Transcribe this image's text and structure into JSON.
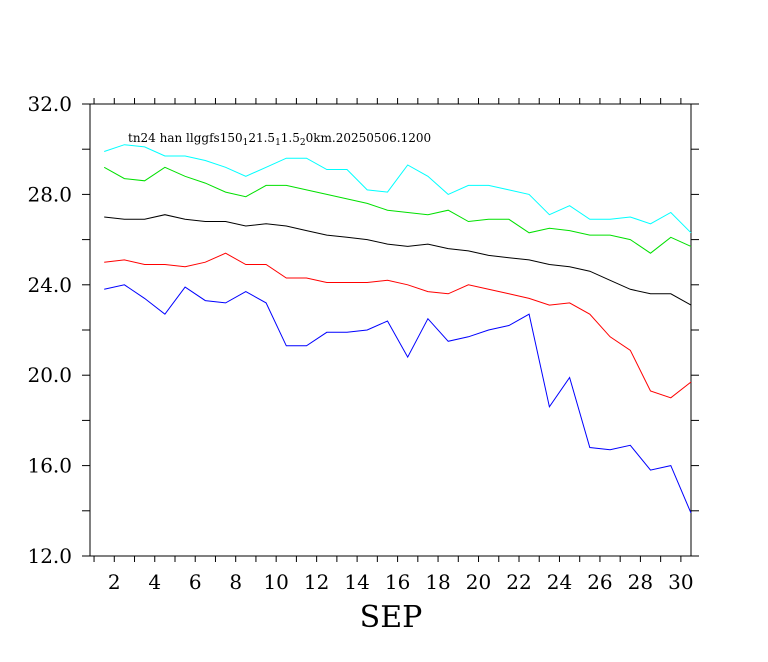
{
  "chart_data": {
    "type": "line",
    "title_parts": [
      {
        "text": "tn24 han llggfs150",
        "sub": false
      },
      {
        "text": "1",
        "sub": true
      },
      {
        "text": "21.5",
        "sub": false
      },
      {
        "text": "1",
        "sub": true
      },
      {
        "text": "1.5",
        "sub": false
      },
      {
        "text": "2",
        "sub": true
      },
      {
        "text": "0km.20250506.1200",
        "sub": false
      }
    ],
    "xlabel": "SEP",
    "ylabel": "",
    "xlim": [
      0.8,
      30.5
    ],
    "ylim": [
      12.0,
      32.0
    ],
    "x_ticks": [
      2,
      4,
      6,
      8,
      10,
      12,
      14,
      16,
      18,
      20,
      22,
      24,
      26,
      28,
      30
    ],
    "x_tick_labels": [
      "2",
      "4",
      "6",
      "8",
      "10",
      "12",
      "14",
      "16",
      "18",
      "20",
      "22",
      "24",
      "26",
      "28",
      "30"
    ],
    "y_ticks": [
      12,
      16,
      20,
      24,
      28,
      32
    ],
    "y_tick_labels": [
      "12.0",
      "16.0",
      "20.0",
      "24.0",
      "28.0",
      "32.0"
    ],
    "y_minor_ticks": [
      14,
      18,
      22,
      26,
      30
    ],
    "grid": false,
    "x": [
      1.5,
      2.5,
      3.5,
      4.5,
      5.5,
      6.5,
      7.5,
      8.5,
      9.5,
      10.5,
      11.5,
      12.5,
      13.5,
      14.5,
      15.5,
      16.5,
      17.5,
      18.5,
      19.5,
      20.5,
      21.5,
      22.5,
      23.5,
      24.5,
      25.5,
      26.5,
      27.5,
      28.5,
      29.5,
      30.5
    ],
    "series": [
      {
        "color": "#00ffff",
        "values": [
          29.9,
          30.2,
          30.1,
          29.7,
          29.7,
          29.5,
          29.2,
          28.8,
          29.2,
          29.6,
          29.6,
          29.1,
          29.1,
          28.2,
          28.1,
          29.3,
          28.8,
          28.0,
          28.4,
          28.4,
          28.2,
          28.0,
          27.1,
          27.5,
          26.9,
          26.9,
          27.0,
          26.7,
          27.2,
          26.3
        ]
      },
      {
        "color": "#00e000",
        "values": [
          29.2,
          28.7,
          28.6,
          29.2,
          28.8,
          28.5,
          28.1,
          27.9,
          28.4,
          28.4,
          28.2,
          28.0,
          27.8,
          27.6,
          27.3,
          27.2,
          27.1,
          27.3,
          26.8,
          26.9,
          26.9,
          26.3,
          26.5,
          26.4,
          26.2,
          26.2,
          26.0,
          25.4,
          26.1,
          25.7
        ]
      },
      {
        "color": "#000000",
        "values": [
          27.0,
          26.9,
          26.9,
          27.1,
          26.9,
          26.8,
          26.8,
          26.6,
          26.7,
          26.6,
          26.4,
          26.2,
          26.1,
          26.0,
          25.8,
          25.7,
          25.8,
          25.6,
          25.5,
          25.3,
          25.2,
          25.1,
          24.9,
          24.8,
          24.6,
          24.2,
          23.8,
          23.6,
          23.6,
          23.1
        ]
      },
      {
        "color": "#ff0000",
        "values": [
          25.0,
          25.1,
          24.9,
          24.9,
          24.8,
          25.0,
          25.4,
          24.9,
          24.9,
          24.3,
          24.3,
          24.1,
          24.1,
          24.1,
          24.2,
          24.0,
          23.7,
          23.6,
          24.0,
          23.8,
          23.6,
          23.4,
          23.1,
          23.2,
          22.7,
          21.7,
          21.1,
          19.3,
          19.0,
          19.7
        ]
      },
      {
        "color": "#0000ff",
        "values": [
          23.8,
          24.0,
          23.4,
          22.7,
          23.9,
          23.3,
          23.2,
          23.7,
          23.2,
          21.3,
          21.3,
          21.9,
          21.9,
          22.0,
          22.4,
          20.8,
          22.5,
          21.5,
          21.7,
          22.0,
          22.2,
          22.7,
          18.6,
          19.9,
          16.8,
          16.7,
          16.9,
          15.8,
          16.0,
          13.9
        ]
      }
    ]
  }
}
